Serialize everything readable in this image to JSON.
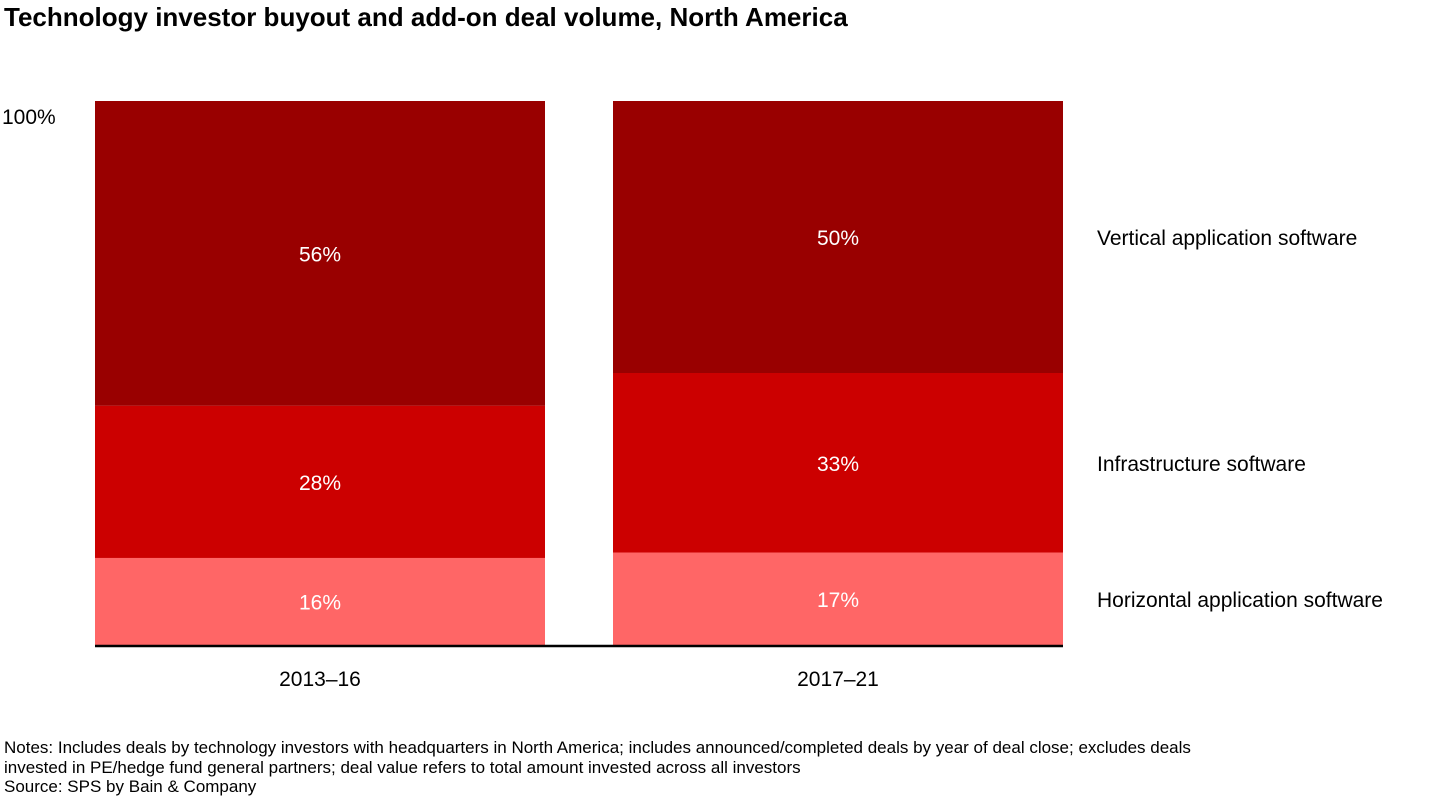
{
  "title": "Technology investor buyout and add-on deal volume, North America",
  "chart_data": {
    "type": "bar",
    "stacked": true,
    "normalized": true,
    "title": "Technology investor buyout and add-on deal volume, North America",
    "xlabel": "",
    "ylabel": "",
    "ylim": [
      0,
      100
    ],
    "y_tick_labels": [
      "100%"
    ],
    "categories": [
      "2013–16",
      "2017–21"
    ],
    "series": [
      {
        "name": "Horizontal application software",
        "values": [
          16,
          17
        ],
        "labels": [
          "16%",
          "17%"
        ],
        "color": "#ff6666"
      },
      {
        "name": "Infrastructure software",
        "values": [
          28,
          33
        ],
        "labels": [
          "28%",
          "33%"
        ],
        "color": "#cc0000"
      },
      {
        "name": "Vertical application software",
        "values": [
          56,
          50
        ],
        "labels": [
          "56%",
          "50%"
        ],
        "color": "#990000"
      }
    ],
    "legend_placement": "right"
  },
  "notes": {
    "line1": "Notes: Includes deals by technology investors with headquarters in North America; includes announced/completed deals by year of deal close; excludes deals",
    "line2": "invested in PE/hedge fund general partners; deal value refers to total amount invested across all investors",
    "source": "Source: SPS by Bain & Company"
  }
}
